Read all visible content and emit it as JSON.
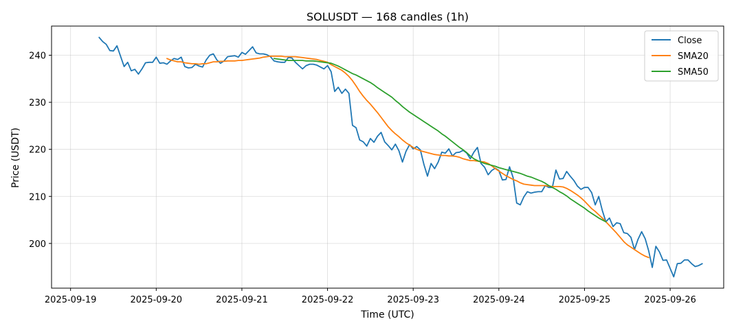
{
  "chart_data": {
    "type": "line",
    "title": "SOLUSDT — 168 candles (1h)",
    "xlabel": "Time (UTC)",
    "ylabel": "Price (USDT)",
    "x_ticks": [
      "2025-09-19",
      "2025-09-20",
      "2025-09-21",
      "2025-09-22",
      "2025-09-23",
      "2025-09-24",
      "2025-09-25",
      "2025-09-26"
    ],
    "y_ticks": [
      200,
      210,
      220,
      230,
      240
    ],
    "xlim": [
      "2025-09-18T18:40",
      "2025-09-26T15:00"
    ],
    "ylim": [
      190.5,
      246.2
    ],
    "grid": true,
    "legend_position": "top-right",
    "colors": {
      "Close": "#1f77b4",
      "SMA20": "#ff7f0e",
      "SMA50": "#2ca02c"
    },
    "series": [
      {
        "name": "Close",
        "start": "2025-09-19T08:00",
        "step_hours": 1,
        "values": [
          243.8,
          242.9,
          242.3,
          241.0,
          240.9,
          242.0,
          239.8,
          237.6,
          238.5,
          236.7,
          237.0,
          236.0,
          237.1,
          238.4,
          238.5,
          238.5,
          239.6,
          238.3,
          238.4,
          238.1,
          238.8,
          239.3,
          239.1,
          239.6,
          237.6,
          237.3,
          237.4,
          238.1,
          237.7,
          237.5,
          239.0,
          240.0,
          240.3,
          239.0,
          238.3,
          238.8,
          239.7,
          239.8,
          239.9,
          239.6,
          240.6,
          240.2,
          241.0,
          241.8,
          240.5,
          240.3,
          240.3,
          240.1,
          239.7,
          238.8,
          238.6,
          238.5,
          238.5,
          239.5,
          239.4,
          238.5,
          237.8,
          237.1,
          237.8,
          238.1,
          238.1,
          237.9,
          237.5,
          237.1,
          237.8,
          236.5,
          232.3,
          233.2,
          231.9,
          232.8,
          231.9,
          225.1,
          224.6,
          222.0,
          221.6,
          220.7,
          222.3,
          221.5,
          222.8,
          223.6,
          221.6,
          220.8,
          219.9,
          221.1,
          219.7,
          217.3,
          219.6,
          221.0,
          220.1,
          220.6,
          219.9,
          216.8,
          214.3,
          217.0,
          215.9,
          217.3,
          219.4,
          219.2,
          220.1,
          218.6,
          219.3,
          219.4,
          219.8,
          219.2,
          218.0,
          219.4,
          220.4,
          217.0,
          216.2,
          214.6,
          215.5,
          216.0,
          215.5,
          213.5,
          213.6,
          216.3,
          214.0,
          208.6,
          208.2,
          209.9,
          211.0,
          210.7,
          210.9,
          211.0,
          211.0,
          212.3,
          211.9,
          211.9,
          215.6,
          213.7,
          213.8,
          215.3,
          214.3,
          213.4,
          212.2,
          211.5,
          211.9,
          211.9,
          210.8,
          208.2,
          210.0,
          207.0,
          204.6,
          205.4,
          203.6,
          204.4,
          204.2,
          202.3,
          202.1,
          201.3,
          198.7,
          200.9,
          202.5,
          201.0,
          198.4,
          194.9,
          199.4,
          198.2,
          196.4,
          196.5,
          194.7,
          192.9,
          195.7,
          195.8,
          196.5,
          196.5,
          195.7,
          195.1,
          195.3,
          195.7
        ]
      },
      {
        "name": "SMA20",
        "start": "2025-09-20T03:00",
        "step_hours": 1,
        "values": [
          239.3,
          239.0,
          238.8,
          238.6,
          238.6,
          238.4,
          238.3,
          238.2,
          238.2,
          238.1,
          238.2,
          238.2,
          238.4,
          238.6,
          238.6,
          238.7,
          238.7,
          238.8,
          238.8,
          238.8,
          238.9,
          238.9,
          239.0,
          239.1,
          239.2,
          239.3,
          239.4,
          239.6,
          239.7,
          239.8,
          239.8,
          239.8,
          239.8,
          239.7,
          239.7,
          239.7,
          239.7,
          239.6,
          239.5,
          239.4,
          239.3,
          239.2,
          239.1,
          238.9,
          238.7,
          238.5,
          238.0,
          237.6,
          237.2,
          236.8,
          236.2,
          235.5,
          234.6,
          233.5,
          232.3,
          231.3,
          230.4,
          229.6,
          228.7,
          227.8,
          226.8,
          225.8,
          224.8,
          224.0,
          223.3,
          222.7,
          222.0,
          221.4,
          220.9,
          220.4,
          220.0,
          219.7,
          219.5,
          219.3,
          219.1,
          218.9,
          218.8,
          218.7,
          218.7,
          218.6,
          218.6,
          218.5,
          218.3,
          218.0,
          217.8,
          217.6,
          217.6,
          217.5,
          217.4,
          217.3,
          217.0,
          216.5,
          215.9,
          215.4,
          214.9,
          214.4,
          214.0,
          213.6,
          213.3,
          212.9,
          212.6,
          212.5,
          212.4,
          212.3,
          212.3,
          212.3,
          212.3,
          212.2,
          212.1,
          212.1,
          212.1,
          212.0,
          211.7,
          211.3,
          210.8,
          210.3,
          209.7,
          209.0,
          208.2,
          207.4,
          206.8,
          206.1,
          205.4,
          204.6,
          203.8,
          203.0,
          202.2,
          201.3,
          200.4,
          199.7,
          199.2,
          198.7,
          198.2,
          197.7,
          197.3,
          197.0
        ]
      },
      {
        "name": "SMA50",
        "start": "2025-09-21T09:00",
        "step_hours": 1,
        "values": [
          239.3,
          239.2,
          239.1,
          239.0,
          238.9,
          238.9,
          238.9,
          238.9,
          238.9,
          238.8,
          238.8,
          238.8,
          238.7,
          238.6,
          238.5,
          238.4,
          238.3,
          238.0,
          237.7,
          237.3,
          236.9,
          236.5,
          236.1,
          235.8,
          235.4,
          235.0,
          234.6,
          234.2,
          233.7,
          233.1,
          232.6,
          232.1,
          231.6,
          231.1,
          230.4,
          229.8,
          229.1,
          228.5,
          227.9,
          227.4,
          226.9,
          226.4,
          225.9,
          225.4,
          224.9,
          224.4,
          223.9,
          223.3,
          222.8,
          222.2,
          221.6,
          221.0,
          220.4,
          219.9,
          219.3,
          218.6,
          218.0,
          217.6,
          217.3,
          217.0,
          216.8,
          216.6,
          216.4,
          216.1,
          215.9,
          215.7,
          215.5,
          215.3,
          215.1,
          214.9,
          214.6,
          214.3,
          214.1,
          213.8,
          213.5,
          213.2,
          212.8,
          212.3,
          211.9,
          211.5,
          211.0,
          210.6,
          210.1,
          209.5,
          209.0,
          208.5,
          208.0,
          207.5,
          206.9,
          206.4,
          205.9,
          205.4,
          205.0,
          204.6
        ]
      }
    ]
  }
}
